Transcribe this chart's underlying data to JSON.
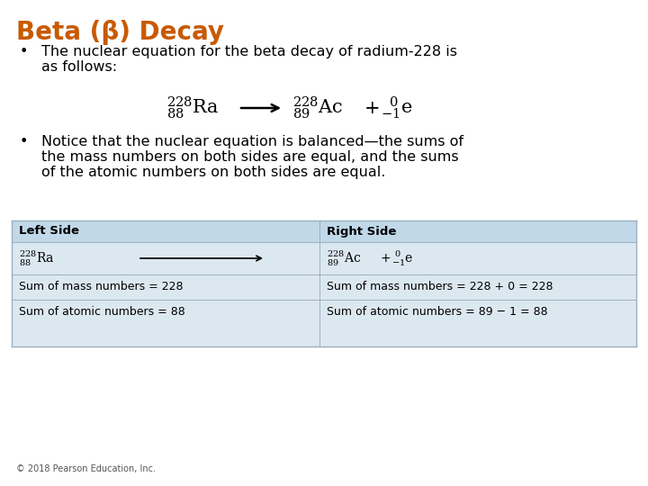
{
  "title": "Beta (β) Decay",
  "title_color": "#c85a00",
  "bg_color": "#ffffff",
  "bullet1_line1": "The nuclear equation for the beta decay of radium-228 is",
  "bullet1_line2": "as follows:",
  "bullet2_line1": "Notice that the nuclear equation is balanced—the sums of",
  "bullet2_line2": "the mass numbers on both sides are equal, and the sums",
  "bullet2_line3": "of the atomic numbers on both sides are equal.",
  "table_bg": "#dce8f0",
  "table_header_bg": "#c0d8e8",
  "table_divider": "#aabbcc",
  "copyright": "© 2018 Pearson Education, Inc.",
  "font_color": "#000000",
  "title_color_hex": "#c85a00",
  "font_size_title": 20,
  "font_size_body": 11.5,
  "font_size_eq": 15,
  "font_size_table_sym": 10,
  "font_size_table_text": 9,
  "font_size_copyright": 7
}
